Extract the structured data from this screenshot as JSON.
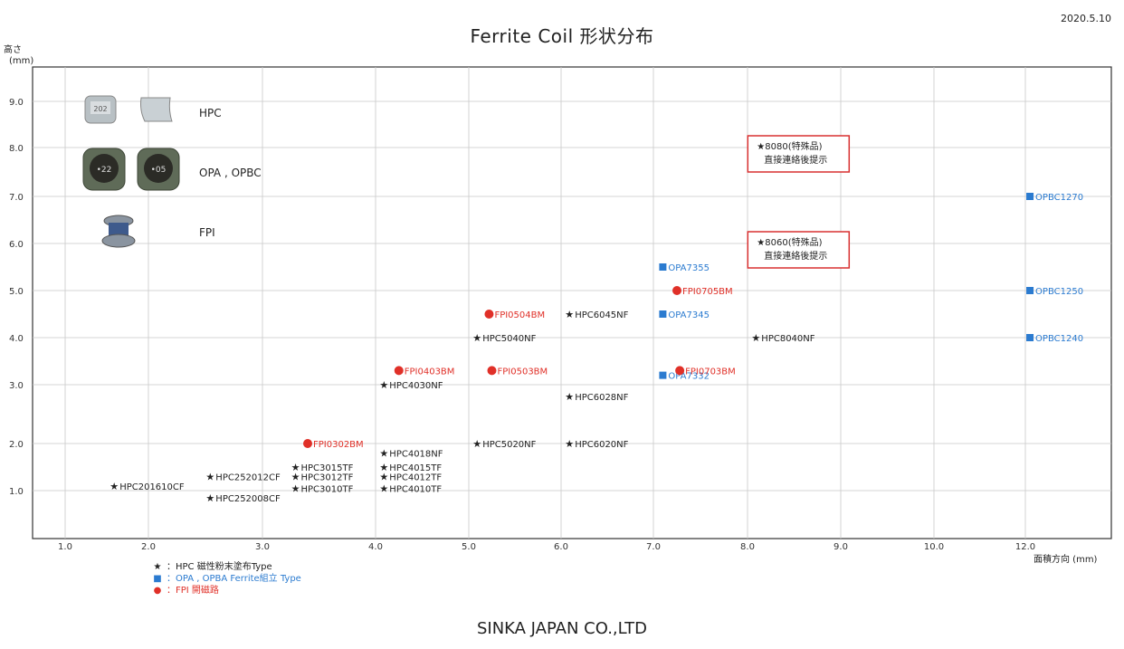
{
  "title": "Ferrite Coil  形状分布",
  "date": "2020.5.10",
  "company": "SINKA JAPAN CO.,LTD",
  "colors": {
    "hpc": "#222222",
    "opa": "#2b7bd0",
    "fpi": "#e03028",
    "note_box": "#d83030"
  },
  "image_legend": [
    {
      "label": "HPC",
      "icon": "hpc-coil-photo",
      "chips": [
        "202",
        ""
      ]
    },
    {
      "label": "OPA , OPBC",
      "icon": "opa-coil-photo",
      "chips": [
        "•22",
        "•05"
      ]
    },
    {
      "label": "FPI",
      "icon": "fpi-coil-photo",
      "chips": []
    }
  ],
  "legend": [
    {
      "symbol": "★",
      "text": "：HPC 磁性粉末塗布Type",
      "kind": "hpc"
    },
    {
      "symbol": "■",
      "text": "：OPA , OPBA  Ferrite組立 Type",
      "kind": "opa"
    },
    {
      "symbol": "●",
      "text": "：FPI   開磁路",
      "kind": "fpi"
    }
  ],
  "chart_data": {
    "type": "scatter",
    "title": "Ferrite Coil  形状分布",
    "ylabel": "高さ\n(mm)",
    "xlabel": "面積方向 (mm)",
    "x_ticks": [
      "1.0",
      "2.0",
      "3.0",
      "4.0",
      "5.0",
      "6.0",
      "7.0",
      "8.0",
      "9.0",
      "10.0",
      "12.0"
    ],
    "y_ticks": [
      "1.0",
      "2.0",
      "3.0",
      "4.0",
      "5.0",
      "6.0",
      "7.0",
      "8.0",
      "9.0"
    ],
    "grid": true,
    "series": [
      {
        "name": "HPC",
        "marker": "star",
        "points": [
          {
            "label": "HPC201610CF",
            "x": 1.6,
            "y": 1.1
          },
          {
            "label": "HPC252012CF",
            "x": 2.55,
            "y": 1.3
          },
          {
            "label": "HPC252008CF",
            "x": 2.55,
            "y": 0.85
          },
          {
            "label": "HPC3015TF",
            "x": 3.3,
            "y": 1.5
          },
          {
            "label": "HPC3012TF",
            "x": 3.3,
            "y": 1.3
          },
          {
            "label": "HPC3010TF",
            "x": 3.3,
            "y": 1.05
          },
          {
            "label": "HPC4018NF",
            "x": 4.1,
            "y": 1.8
          },
          {
            "label": "HPC4015TF",
            "x": 4.1,
            "y": 1.5
          },
          {
            "label": "HPC4012TF",
            "x": 4.1,
            "y": 1.3
          },
          {
            "label": "HPC4010TF",
            "x": 4.1,
            "y": 1.05
          },
          {
            "label": "HPC4030NF",
            "x": 4.1,
            "y": 3.0
          },
          {
            "label": "HPC5040NF",
            "x": 5.1,
            "y": 4.0
          },
          {
            "label": "HPC5020NF",
            "x": 5.1,
            "y": 2.0
          },
          {
            "label": "HPC6045NF",
            "x": 6.1,
            "y": 4.5
          },
          {
            "label": "HPC6028NF",
            "x": 6.1,
            "y": 2.8
          },
          {
            "label": "HPC6020NF",
            "x": 6.1,
            "y": 2.0
          },
          {
            "label": "HPC8040NF",
            "x": 8.1,
            "y": 4.0
          }
        ]
      },
      {
        "name": "OPA , OPBA",
        "marker": "square",
        "points": [
          {
            "label": "OPA7355",
            "x": 7.1,
            "y": 5.5
          },
          {
            "label": "OPA7345",
            "x": 7.1,
            "y": 4.5
          },
          {
            "label": "OPA7332",
            "x": 7.1,
            "y": 3.2
          },
          {
            "label": "OPBC1270",
            "x": 12.1,
            "y": 7.0
          },
          {
            "label": "OPBC1250",
            "x": 12.1,
            "y": 5.0
          },
          {
            "label": "OPBC1240",
            "x": 12.1,
            "y": 4.0
          }
        ]
      },
      {
        "name": "FPI",
        "marker": "circle",
        "points": [
          {
            "label": "FPI0302BM",
            "x": 3.4,
            "y": 2.0
          },
          {
            "label": "FPI0403BM",
            "x": 4.25,
            "y": 3.3
          },
          {
            "label": "FPI0504BM",
            "x": 5.22,
            "y": 4.5
          },
          {
            "label": "FPI0503BM",
            "x": 5.25,
            "y": 3.3
          },
          {
            "label": "FPI0705BM",
            "x": 7.25,
            "y": 5.0
          },
          {
            "label": "FPI0703BM",
            "x": 7.28,
            "y": 3.3
          }
        ]
      }
    ],
    "notes": [
      {
        "star": "★8080(特殊品)",
        "line2": "直接連絡後提示",
        "x": 8.1,
        "y": 8.0
      },
      {
        "star": "★8060(特殊品)",
        "line2": "直接連絡後提示",
        "x": 8.1,
        "y": 6.0
      }
    ]
  }
}
